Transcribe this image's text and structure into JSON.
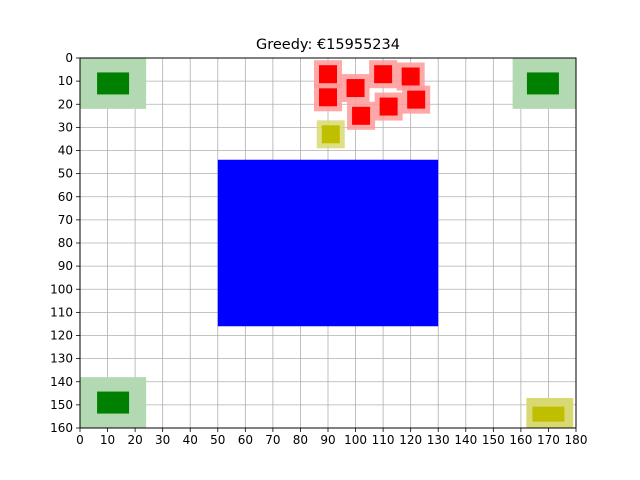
{
  "chart_data": {
    "type": "scatter",
    "title": "Greedy: €15955234",
    "xlabel": "",
    "ylabel": "",
    "xlim": [
      0,
      180
    ],
    "ylim": [
      0,
      160
    ],
    "y_inverted": true,
    "grid": true,
    "xticks": [
      "0",
      "10",
      "20",
      "30",
      "40",
      "50",
      "60",
      "70",
      "80",
      "90",
      "100",
      "110",
      "120",
      "130",
      "140",
      "150",
      "160",
      "170",
      "180"
    ],
    "yticks": [
      "0",
      "10",
      "20",
      "30",
      "40",
      "50",
      "60",
      "70",
      "80",
      "90",
      "100",
      "110",
      "120",
      "130",
      "140",
      "150",
      "160"
    ],
    "colors": {
      "green": "#008000",
      "green_halo": "#b3d9b3",
      "yellow": "#bfbf00",
      "yellow_halo": "#d9d973",
      "red": "#ff0000",
      "red_halo": "#ff9999",
      "blue": "#0000ff",
      "grid": "#b0b0b0"
    },
    "rects": [
      {
        "kind": "obstacle",
        "color": "blue",
        "x0": 50,
        "x1": 130,
        "y0": 44,
        "y1": 116
      },
      {
        "kind": "green_zone",
        "color": "green_halo",
        "x0": 0,
        "x1": 24,
        "y0": 0,
        "y1": 22
      },
      {
        "kind": "green_zone",
        "color": "green_halo",
        "x0": 157,
        "x1": 180,
        "y0": 0,
        "y1": 22
      },
      {
        "kind": "green_zone",
        "color": "green_halo",
        "x0": 0,
        "x1": 24,
        "y0": 138,
        "y1": 160
      },
      {
        "kind": "yellow_zone",
        "color": "yellow_halo",
        "x0": 162,
        "x1": 179,
        "y0": 147,
        "y1": 160
      }
    ],
    "points": [
      {
        "color": "green",
        "x": 12,
        "y": 11
      },
      {
        "color": "green",
        "x": 168,
        "y": 11
      },
      {
        "color": "green",
        "x": 12,
        "y": 149
      },
      {
        "color": "yellow",
        "x": 170,
        "y": 154
      },
      {
        "color": "yellow",
        "x": 91,
        "y": 33
      },
      {
        "color": "red",
        "x": 90,
        "y": 7
      },
      {
        "color": "red",
        "x": 90,
        "y": 17
      },
      {
        "color": "red",
        "x": 100,
        "y": 13
      },
      {
        "color": "red",
        "x": 102,
        "y": 25
      },
      {
        "color": "red",
        "x": 110,
        "y": 7
      },
      {
        "color": "red",
        "x": 120,
        "y": 8
      },
      {
        "color": "red",
        "x": 112,
        "y": 21
      },
      {
        "color": "red",
        "x": 122,
        "y": 18
      }
    ]
  }
}
